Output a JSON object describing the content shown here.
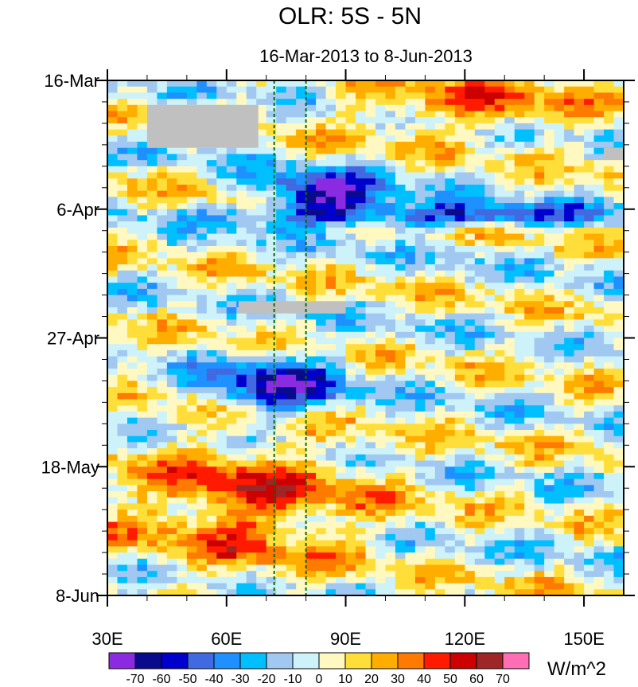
{
  "chart_data": {
    "type": "heatmap",
    "title": "OLR: 5S - 5N",
    "subtitle": "16-Mar-2013 to 8-Jun-2013",
    "x_ticks": [
      {
        "value": 30,
        "label": "30E"
      },
      {
        "value": 60,
        "label": "60E"
      },
      {
        "value": 90,
        "label": "90E"
      },
      {
        "value": 120,
        "label": "120E"
      },
      {
        "value": 150,
        "label": "150E"
      }
    ],
    "x_range": [
      30,
      160
    ],
    "y_ticks": [
      {
        "day": 0,
        "label": "16-Mar"
      },
      {
        "day": 21,
        "label": "6-Apr"
      },
      {
        "day": 42,
        "label": "27-Apr"
      },
      {
        "day": 63,
        "label": "18-May"
      },
      {
        "day": 84,
        "label": "8-Jun"
      }
    ],
    "y_range_days": [
      0,
      84
    ],
    "reference_lines_lon": [
      72,
      80
    ],
    "units": "W/m^2",
    "colorbar": {
      "levels": [
        -70,
        -60,
        -50,
        -40,
        -30,
        -20,
        -10,
        0,
        10,
        20,
        30,
        40,
        50,
        60,
        70
      ],
      "colors": [
        "#8a2be2",
        "#0a0a8c",
        "#0000cd",
        "#4169e1",
        "#1e90ff",
        "#00bfff",
        "#a0c8f0",
        "#cdf2fa",
        "#fff8c0",
        "#ffde3a",
        "#ffae00",
        "#ff7a00",
        "#ff1a00",
        "#cc0000",
        "#9e2626",
        "#ff6eb4"
      ]
    },
    "features": [
      {
        "desc": "strong negative band",
        "lon0": 62,
        "day0": 20,
        "lon1": 160,
        "day1": 24,
        "value": -55
      },
      {
        "desc": "active convection",
        "lon0": 68,
        "day0": 15,
        "lon1": 100,
        "day1": 22,
        "value": -70
      },
      {
        "desc": "second convective event",
        "lon0": 55,
        "day0": 45,
        "lon1": 90,
        "day1": 55,
        "value": -60
      },
      {
        "desc": "positive anomaly",
        "lon0": 90,
        "day0": 0,
        "lon1": 150,
        "day1": 8,
        "value": 35
      },
      {
        "desc": "late positive anomaly",
        "lon0": 35,
        "day0": 58,
        "lon1": 95,
        "day1": 80,
        "value": 40
      }
    ],
    "missing_regions": [
      {
        "lon0": 40,
        "day0": 4,
        "lon1": 68,
        "day1": 11
      },
      {
        "lon0": 63,
        "day0": 36,
        "lon1": 90,
        "day1": 38
      },
      {
        "lon0": 155,
        "day0": 11,
        "lon1": 160,
        "day1": 13
      }
    ]
  }
}
